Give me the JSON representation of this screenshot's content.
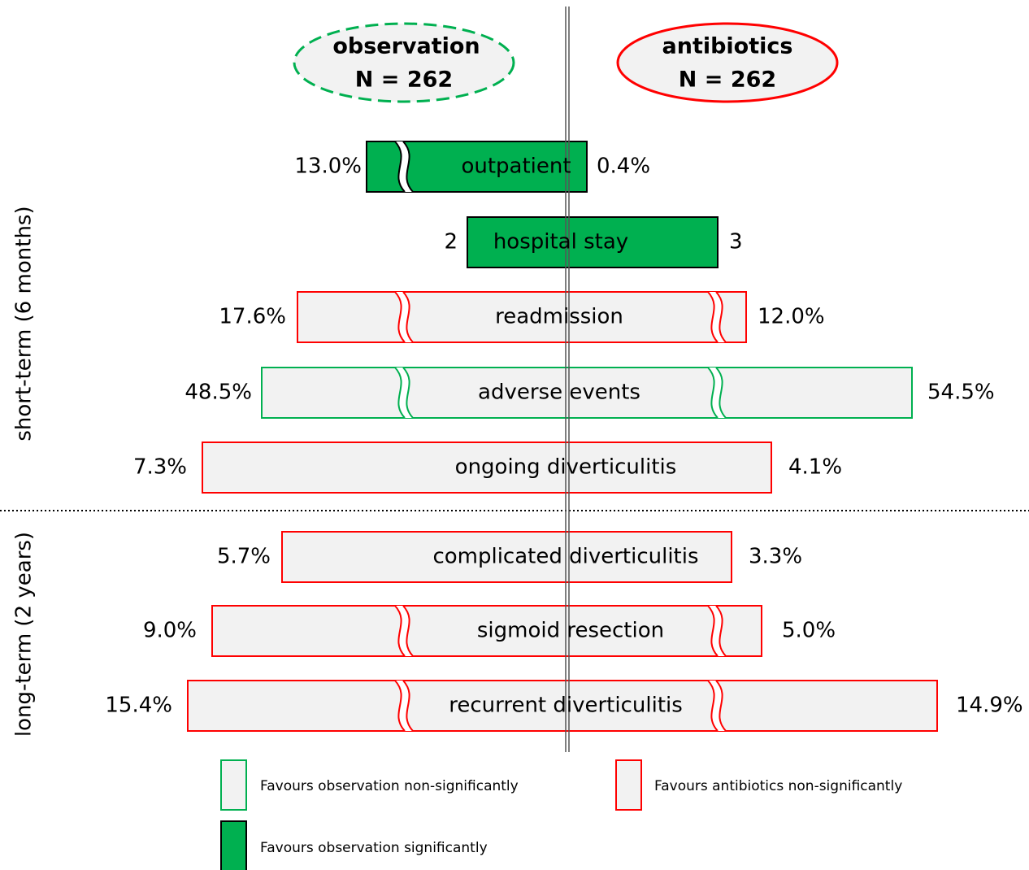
{
  "header": {
    "left": {
      "title": "observation",
      "n": "N = 262",
      "stroke": "#00b050"
    },
    "right": {
      "title": "antibiotics",
      "n": "N = 262",
      "stroke": "#ff0000"
    }
  },
  "sections": [
    {
      "label": "short-term (6 months)"
    },
    {
      "label": "long-term (2 years)"
    }
  ],
  "rows": [
    {
      "label": "outpatient",
      "left": "13.0%",
      "right": "0.4%",
      "fill": "#00b050",
      "stroke": "#000000"
    },
    {
      "label": "hospital stay",
      "left": "2",
      "right": "3",
      "fill": "#00b050",
      "stroke": "#000000"
    },
    {
      "label": "readmission",
      "left": "17.6%",
      "right": "12.0%",
      "fill": "#f2f2f2",
      "stroke": "#ff0000"
    },
    {
      "label": "adverse events",
      "left": "48.5%",
      "right": "54.5%",
      "fill": "#f2f2f2",
      "stroke": "#00b050"
    },
    {
      "label": "ongoing diverticulitis",
      "left": "7.3%",
      "right": "4.1%",
      "fill": "#f2f2f2",
      "stroke": "#ff0000"
    },
    {
      "label": "complicated diverticulitis",
      "left": "5.7%",
      "right": "3.3%",
      "fill": "#f2f2f2",
      "stroke": "#ff0000"
    },
    {
      "label": "sigmoid resection",
      "left": "9.0%",
      "right": "5.0%",
      "fill": "#f2f2f2",
      "stroke": "#ff0000"
    },
    {
      "label": "recurrent diverticulitis",
      "left": "15.4%",
      "right": "14.9%",
      "fill": "#f2f2f2",
      "stroke": "#ff0000"
    }
  ],
  "legend": [
    {
      "text": "Favours observation non-significantly",
      "fill": "#f2f2f2",
      "stroke": "#00b050"
    },
    {
      "text": "Favours antibiotics non-significantly",
      "fill": "#f2f2f2",
      "stroke": "#ff0000"
    },
    {
      "text": "Favours observation significantly",
      "fill": "#00b050",
      "stroke": "#000000"
    }
  ]
}
